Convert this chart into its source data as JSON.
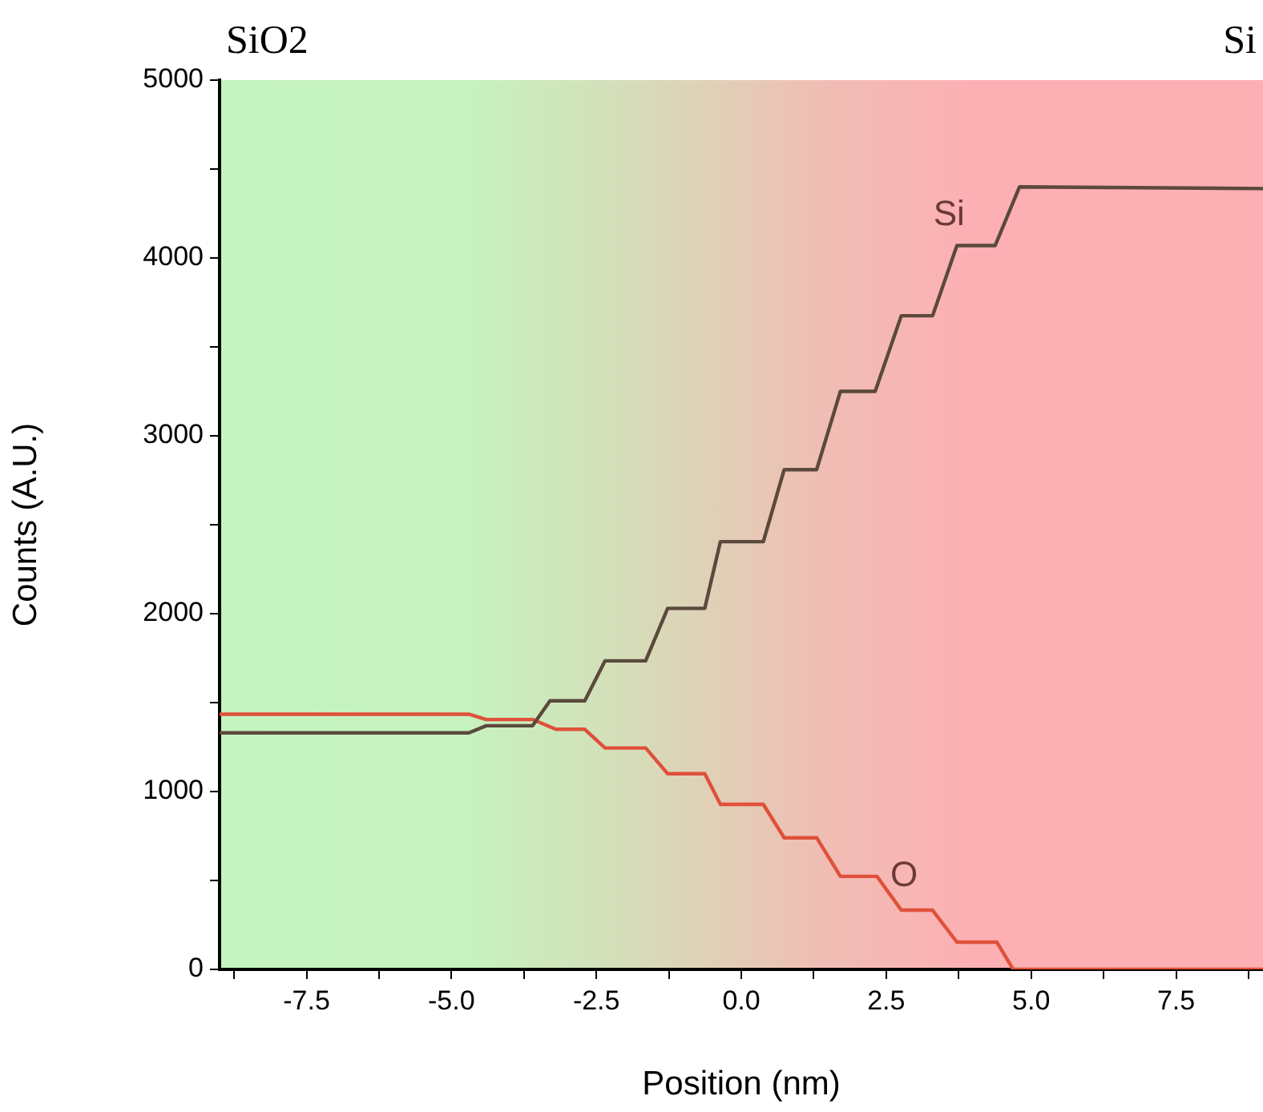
{
  "chart_data": {
    "type": "line",
    "xlabel": "Position (nm)",
    "ylabel": "Counts (A.U.)",
    "annotations": [
      "SiO2",
      "Si"
    ],
    "xlim": [
      -9,
      9
    ],
    "xticks": [
      {
        "value": -8.75,
        "label": null
      },
      {
        "value": -7.5,
        "label": "-7.5"
      },
      {
        "value": -6.25,
        "label": null
      },
      {
        "value": -5,
        "label": "-5.0"
      },
      {
        "value": -3.75,
        "label": null
      },
      {
        "value": -2.5,
        "label": "-2.5"
      },
      {
        "value": -1.25,
        "label": null
      },
      {
        "value": 0,
        "label": "0.0"
      },
      {
        "value": 1.25,
        "label": null
      },
      {
        "value": 2.5,
        "label": "2.5"
      },
      {
        "value": 3.75,
        "label": null
      },
      {
        "value": 5,
        "label": "5.0"
      },
      {
        "value": 6.25,
        "label": null
      },
      {
        "value": 7.5,
        "label": "7.5"
      },
      {
        "value": 8.75,
        "label": null
      }
    ],
    "ylim": [
      0,
      5000
    ],
    "yticks": [
      0,
      {
        "value": 500,
        "label": null
      },
      1000,
      {
        "value": 1500,
        "label": null
      },
      2000,
      {
        "value": 2500,
        "label": null
      },
      3000,
      {
        "value": 3500,
        "label": null
      },
      4000,
      {
        "value": 4500,
        "label": null
      },
      5000
    ],
    "grid": false,
    "legend": false,
    "marker": "none",
    "line_style": "solid",
    "series": [
      {
        "name": "Si",
        "color": "#5b4a3c",
        "x": [
          -9,
          -4.7,
          -4.4,
          -3.6,
          -3.3,
          -2.7,
          -2.35,
          -1.65,
          -1.27,
          -0.63,
          -0.36,
          0.38,
          0.74,
          1.3,
          1.71,
          2.31,
          2.76,
          3.3,
          3.72,
          4.38,
          4.8,
          9
        ],
        "values": [
          1330,
          1330,
          1370,
          1370,
          1510,
          1510,
          1735,
          1735,
          2030,
          2030,
          2405,
          2405,
          2810,
          2810,
          3250,
          3250,
          3675,
          3675,
          4070,
          4070,
          4400,
          4390
        ]
      },
      {
        "name": "O",
        "color": "#e0503a",
        "x": [
          -9,
          -4.7,
          -4.4,
          -3.6,
          -3.2,
          -2.7,
          -2.35,
          -1.65,
          -1.27,
          -0.63,
          -0.36,
          0.38,
          0.74,
          1.3,
          1.71,
          2.34,
          2.76,
          3.3,
          3.72,
          4.41,
          4.69,
          9
        ],
        "values": [
          1435,
          1435,
          1405,
          1405,
          1350,
          1350,
          1245,
          1245,
          1100,
          1100,
          928,
          928,
          740,
          740,
          523,
          523,
          333,
          333,
          153,
          153,
          0,
          0
        ]
      }
    ]
  }
}
